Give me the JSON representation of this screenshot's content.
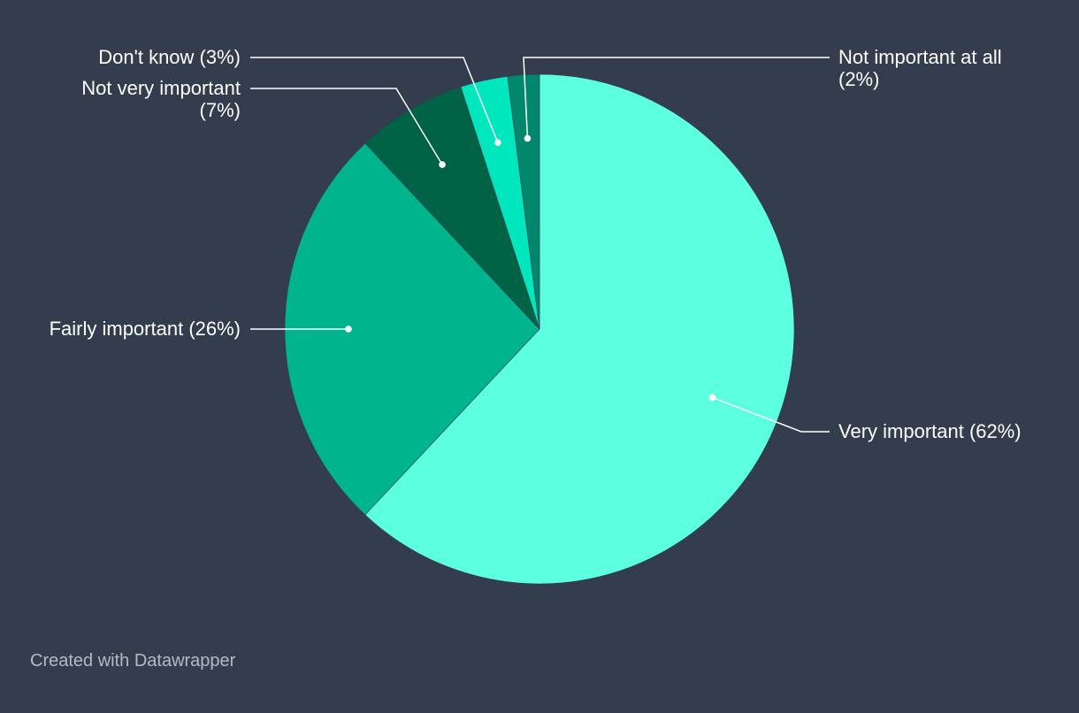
{
  "chart_data": {
    "type": "pie",
    "title": "",
    "slices": [
      {
        "label": "Very important",
        "value": 62,
        "value_label": "(62%)",
        "color": "#5cffe0"
      },
      {
        "label": "Fairly important",
        "value": 26,
        "value_label": "(26%)",
        "color": "#00b58e"
      },
      {
        "label": "Not very important",
        "value": 7,
        "value_label": "(7%)",
        "color": "#006346"
      },
      {
        "label": "Don't know",
        "value": 3,
        "value_label": "(3%)",
        "color": "#00e6bd"
      },
      {
        "label": "Not important at all",
        "value": 2,
        "value_label": "(2%)",
        "color": "#00876c"
      }
    ],
    "start": "12 o'clock",
    "direction": "clockwise"
  },
  "footer": {
    "credit": "Created with Datawrapper"
  },
  "colors": {
    "background": "#333d4d",
    "label_text": "#ffffff",
    "credit_text": "#b4bac3"
  }
}
